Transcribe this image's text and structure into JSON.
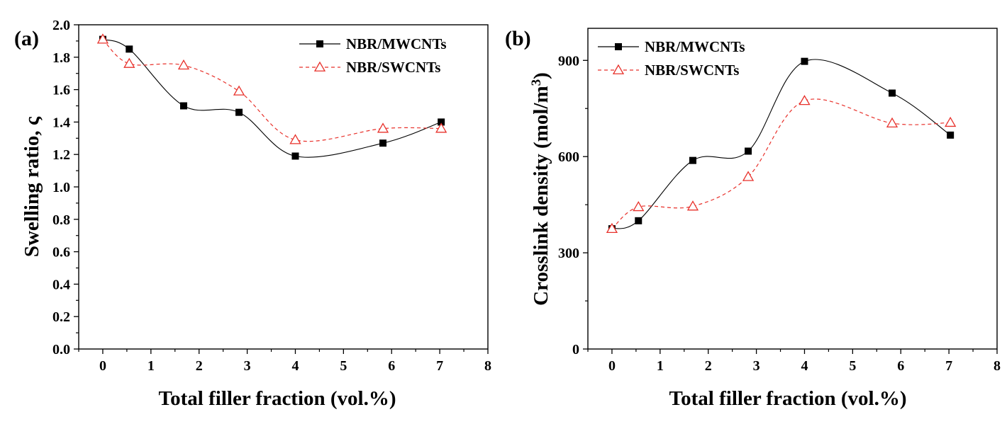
{
  "chart_data": [
    {
      "type": "scatter",
      "panel_label": "(a)",
      "title": "",
      "xlabel": "Total filler fraction (vol.%)",
      "ylabel": "Swelling ratio, ς",
      "xlim": [
        -0.5,
        8
      ],
      "ylim": [
        0,
        2.0
      ],
      "x_ticks": [
        "0",
        "1",
        "2",
        "3",
        "4",
        "5",
        "6",
        "7",
        "8"
      ],
      "y_ticks": [
        "0.0",
        "0.2",
        "0.4",
        "0.6",
        "0.8",
        "1.0",
        "1.2",
        "1.4",
        "1.6",
        "1.8",
        "2.0"
      ],
      "grid": false,
      "legend_position": "top-right",
      "series": [
        {
          "name": "NBR/MWCNTs",
          "marker": "filled-square",
          "line": "solid-smooth",
          "color": "#000000",
          "x": [
            0,
            0.55,
            1.68,
            2.83,
            4.0,
            5.82,
            7.03
          ],
          "y": [
            1.91,
            1.85,
            1.5,
            1.46,
            1.19,
            1.27,
            1.4
          ]
        },
        {
          "name": "NBR/SWCNTs",
          "marker": "open-triangle",
          "line": "dashed-smooth",
          "color": "#e8302a",
          "x": [
            0,
            0.55,
            1.68,
            2.83,
            4.0,
            5.82,
            7.03
          ],
          "y": [
            1.91,
            1.76,
            1.75,
            1.59,
            1.29,
            1.36,
            1.36
          ]
        }
      ]
    },
    {
      "type": "scatter",
      "panel_label": "(b)",
      "title": "",
      "xlabel": "Total filler fraction (vol.%)",
      "ylabel": "Crosslink density (mol/m³)",
      "xlim": [
        -0.5,
        8
      ],
      "ylim": [
        0,
        1000
      ],
      "x_ticks": [
        "0",
        "1",
        "2",
        "3",
        "4",
        "5",
        "6",
        "7",
        "8"
      ],
      "y_ticks": [
        "0",
        "300",
        "600",
        "900"
      ],
      "grid": false,
      "legend_position": "top-left",
      "series": [
        {
          "name": "NBR/MWCNTs",
          "marker": "filled-square",
          "line": "solid-smooth",
          "color": "#000000",
          "x": [
            0,
            0.55,
            1.68,
            2.83,
            4.0,
            5.82,
            7.03
          ],
          "y": [
            375,
            400,
            588,
            617,
            897,
            798,
            667
          ]
        },
        {
          "name": "NBR/SWCNTs",
          "marker": "open-triangle",
          "line": "dashed-smooth",
          "color": "#e8302a",
          "x": [
            0,
            0.55,
            1.68,
            2.83,
            4.0,
            5.82,
            7.03
          ],
          "y": [
            375,
            443,
            445,
            537,
            774,
            704,
            706
          ]
        }
      ]
    }
  ]
}
